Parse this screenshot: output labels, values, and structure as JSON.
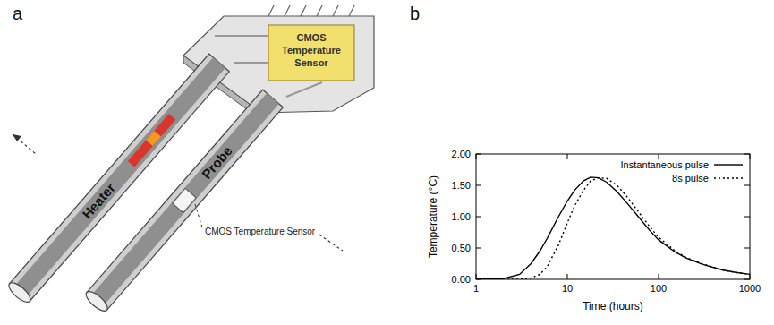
{
  "diagram": {
    "panel_label": "a",
    "heater_label": "Heater",
    "probe_label": "Probe",
    "chip_label": "CMOS Temperature Sensor",
    "probe_sensor_label": "CMOS Temperature Sensor"
  },
  "chart_data": {
    "panel_label": "b",
    "type": "line",
    "x_label": "Time (hours)",
    "y_label": "Temperature (°C)",
    "log": "x",
    "grid": false,
    "legend": "upper right",
    "xlim": [
      1,
      1000
    ],
    "xticks": [
      1,
      10,
      100,
      1000
    ],
    "ylim": [
      0,
      2
    ],
    "yticks": [
      {
        "value": 0,
        "label": "0.00"
      },
      {
        "value": 0.5,
        "label": "0.50"
      },
      {
        "value": 1,
        "label": "1.00"
      },
      {
        "value": 1.5,
        "label": "1.50"
      },
      {
        "value": 2,
        "label": "2.00"
      }
    ],
    "x": [
      1,
      2,
      3,
      4,
      5,
      6,
      8,
      10,
      12,
      15,
      18,
      22,
      27,
      35,
      45,
      60,
      80,
      100,
      150,
      200,
      300,
      500,
      700,
      1000
    ],
    "series": [
      {
        "name": "Instantaneous pulse",
        "color": "#000000",
        "line_style": "solid",
        "values": [
          0,
          0.01,
          0.08,
          0.25,
          0.45,
          0.65,
          1.0,
          1.25,
          1.42,
          1.57,
          1.63,
          1.62,
          1.55,
          1.4,
          1.22,
          1.0,
          0.78,
          0.63,
          0.44,
          0.34,
          0.24,
          0.15,
          0.11,
          0.08
        ]
      },
      {
        "name": "8s pulse",
        "color": "#000000",
        "line_style": "dotted",
        "values": [
          0,
          0,
          0,
          0.02,
          0.08,
          0.2,
          0.55,
          0.9,
          1.17,
          1.42,
          1.57,
          1.62,
          1.61,
          1.5,
          1.32,
          1.08,
          0.84,
          0.67,
          0.46,
          0.35,
          0.25,
          0.15,
          0.11,
          0.08
        ]
      }
    ]
  }
}
